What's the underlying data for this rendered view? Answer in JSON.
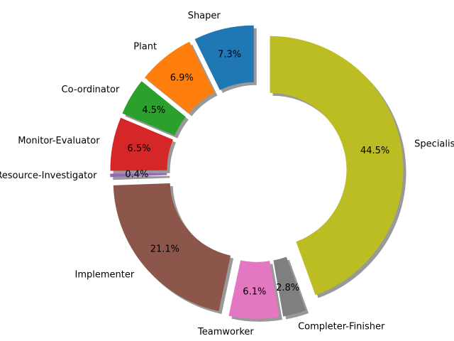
{
  "chart_data": {
    "type": "pie",
    "categories": [
      "Shaper",
      "Plant",
      "Co-ordinator",
      "Monitor-Evaluator",
      "Resource-Investigator",
      "Implementer",
      "Teamworker",
      "Completer-Finisher",
      "Specialist"
    ],
    "values": [
      7.3,
      6.9,
      4.5,
      6.5,
      0.4,
      21.1,
      6.1,
      2.8,
      44.5
    ],
    "value_labels": [
      "7.3%",
      "6.9%",
      "4.5%",
      "6.5%",
      "0.4%",
      "21.1%",
      "6.1%",
      "2.8%",
      "44.5%"
    ],
    "colors": [
      "#1f77b4",
      "#ff7f0e",
      "#2ca02c",
      "#d62728",
      "#9467bd",
      "#8c564b",
      "#e377c2",
      "#7f7f7f",
      "#bcbd22"
    ],
    "donut": true,
    "shadow": true
  }
}
